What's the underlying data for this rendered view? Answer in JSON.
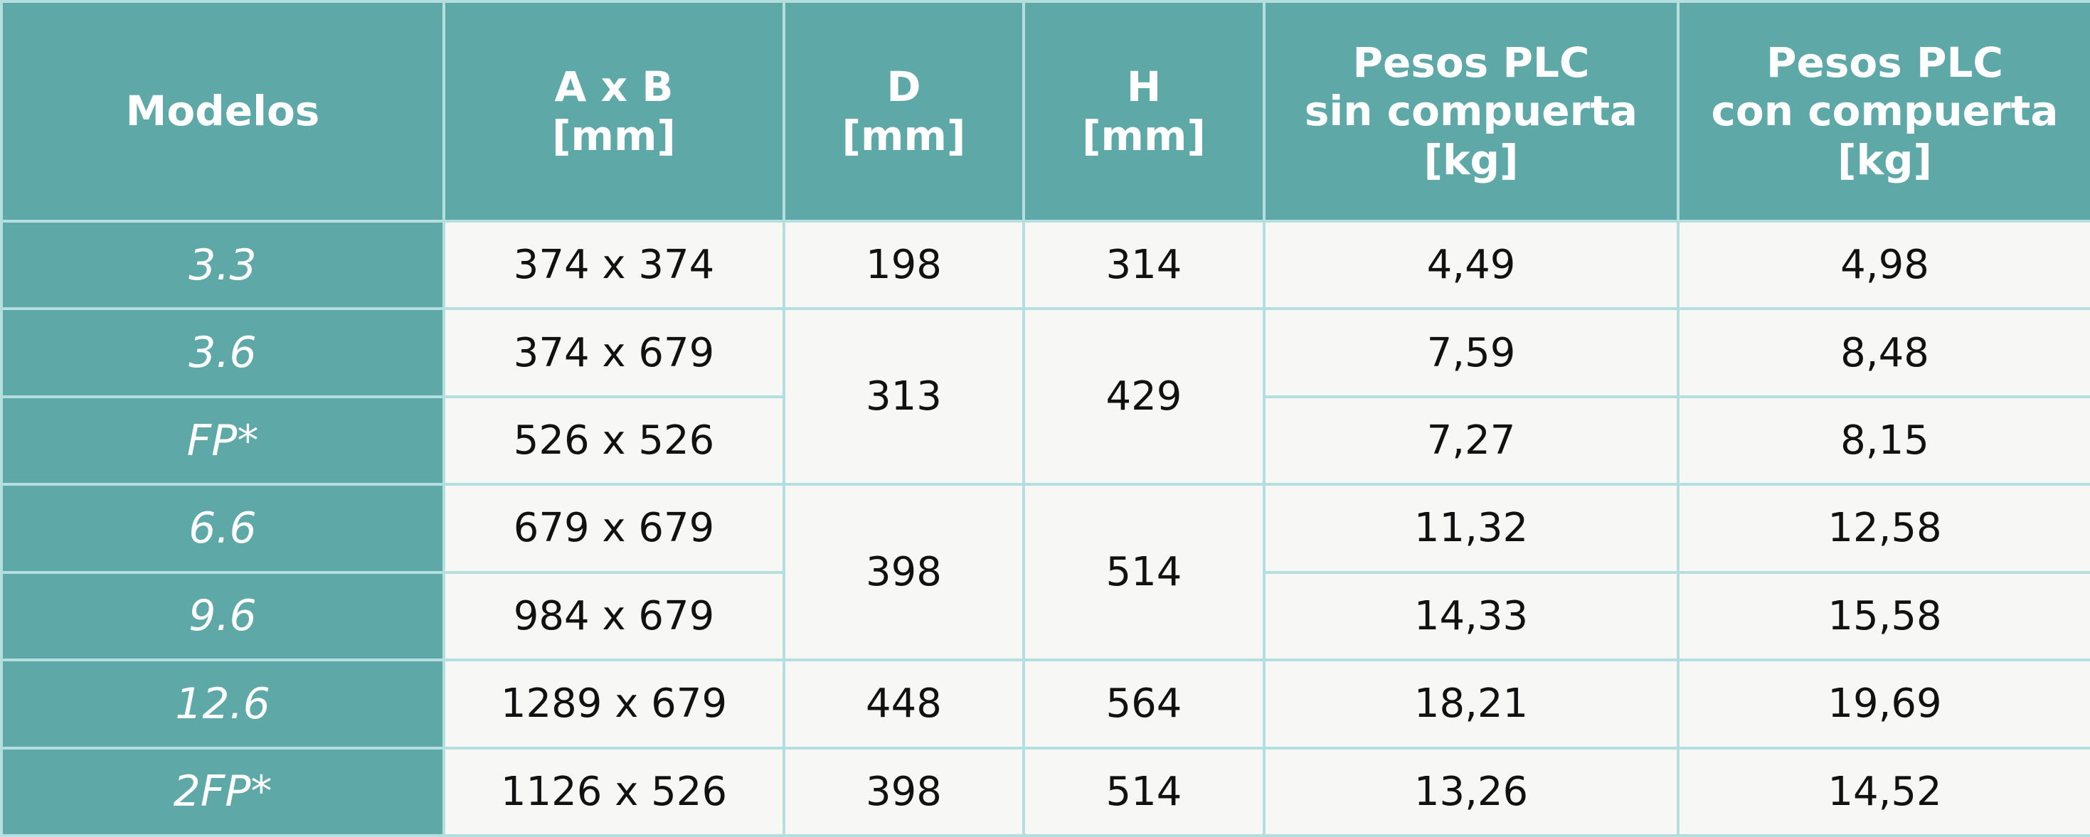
{
  "table": {
    "header": [
      [
        "Modelos"
      ],
      [
        "A x B",
        "[mm]"
      ],
      [
        "D",
        "[mm]"
      ],
      [
        "H",
        "[mm]"
      ],
      [
        "Pesos PLC",
        "sin compuerta",
        "[kg]"
      ],
      [
        "Pesos PLC",
        "con compuerta",
        "[kg]"
      ]
    ],
    "rows": [
      [
        "3.3",
        "374 x 374",
        "198",
        "314",
        "4,49",
        "4,98"
      ],
      [
        "3.6",
        "374 x 679",
        "313",
        "429",
        "7,59",
        "8,48"
      ],
      [
        "FP*",
        "526 x 526",
        "7,27",
        "8,15"
      ],
      [
        "6.6",
        "679 x 679",
        "398",
        "514",
        "11,32",
        "12,58"
      ],
      [
        "9.6",
        "984 x 679",
        "14,33",
        "15,58"
      ],
      [
        "12.6",
        "1289 x 679",
        "448",
        "564",
        "18,21",
        "19,69"
      ],
      [
        "2FP*",
        "1126 x 526",
        "398",
        "514",
        "13,26",
        "14,52"
      ]
    ]
  }
}
